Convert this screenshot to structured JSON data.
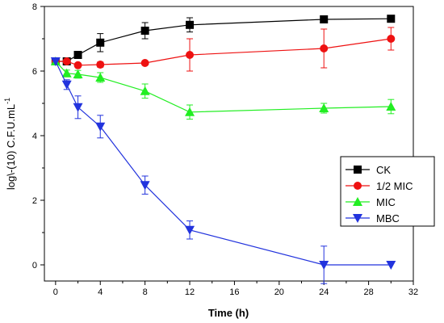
{
  "chart_data": {
    "type": "line",
    "title": "",
    "xlabel": "Time (h)",
    "ylabel": "log\\-(10) C.F.U.mL",
    "ylabel_superscript": "-1",
    "xlim": [
      -1,
      32
    ],
    "ylim": [
      -0.5,
      8
    ],
    "xticks": [
      0,
      4,
      8,
      12,
      16,
      20,
      24,
      28,
      32
    ],
    "yticks": [
      0,
      2,
      4,
      6,
      8
    ],
    "grid": false,
    "legend_position": "right",
    "x": [
      0,
      1,
      2,
      4,
      8,
      12,
      24,
      30
    ],
    "series": [
      {
        "name": "CK",
        "marker": "square",
        "color": "#000000",
        "values": [
          6.3,
          6.3,
          6.5,
          6.88,
          7.25,
          7.43,
          7.6,
          7.62
        ],
        "errors": [
          0.05,
          0.05,
          0.05,
          0.28,
          0.25,
          0.22,
          0.1,
          0.1
        ]
      },
      {
        "name": "1/2 MIC",
        "marker": "circle",
        "color": "#ee1111",
        "values": [
          6.3,
          6.3,
          6.18,
          6.2,
          6.25,
          6.5,
          6.7,
          7.0
        ],
        "errors": [
          0.05,
          0.05,
          0.05,
          0.08,
          0.05,
          0.5,
          0.6,
          0.35
        ]
      },
      {
        "name": "MIC",
        "marker": "triangle-up",
        "color": "#22ee22",
        "values": [
          6.3,
          5.93,
          5.9,
          5.8,
          5.38,
          4.73,
          4.85,
          4.9
        ],
        "errors": [
          0.05,
          0.1,
          0.12,
          0.15,
          0.22,
          0.22,
          0.15,
          0.22
        ]
      },
      {
        "name": "MBC",
        "marker": "triangle-down",
        "color": "#2233dd",
        "values": [
          6.3,
          5.58,
          4.88,
          4.28,
          2.47,
          1.08,
          0.0,
          0.0
        ],
        "errors": [
          0.05,
          0.15,
          0.35,
          0.35,
          0.28,
          0.28,
          0.58,
          0.0
        ]
      }
    ]
  }
}
